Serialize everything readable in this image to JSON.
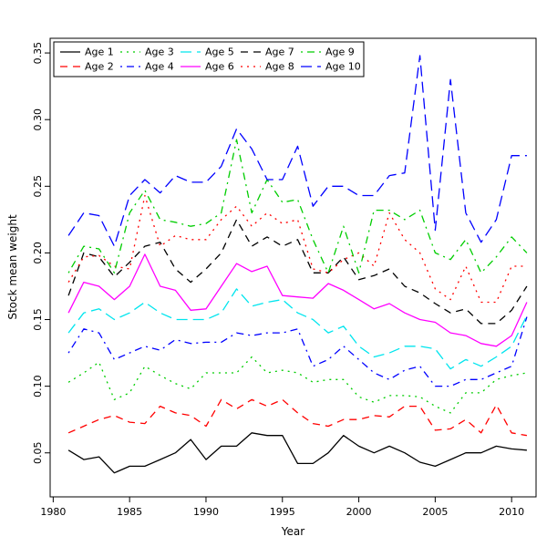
{
  "figure": {
    "background": "#ffffff",
    "xlabel": "Year",
    "ylabel": "Stock mean weight"
  },
  "chart_data": {
    "type": "line",
    "title": "",
    "xlabel": "Year",
    "ylabel": "Stock mean weight",
    "xlim": [
      1979.8,
      2011.6
    ],
    "ylim": [
      0.017,
      0.361
    ],
    "xticks": [
      1980,
      1985,
      1990,
      1995,
      2000,
      2005,
      2010
    ],
    "yticks": [
      0.05,
      0.1,
      0.15,
      0.2,
      0.25,
      0.3,
      0.35
    ],
    "ytick_labels": [
      "0.05",
      "0.10",
      "0.15",
      "0.20",
      "0.25",
      "0.30",
      "0.35"
    ],
    "grid": false,
    "legend": {
      "position": "top-left",
      "ncol": 5,
      "rows": 2,
      "order": "column-major"
    },
    "x": [
      1981,
      1982,
      1983,
      1984,
      1985,
      1986,
      1987,
      1988,
      1989,
      1990,
      1991,
      1992,
      1993,
      1994,
      1995,
      1996,
      1997,
      1998,
      1999,
      2000,
      2001,
      2002,
      2003,
      2004,
      2005,
      2006,
      2007,
      2008,
      2009,
      2010,
      2011
    ],
    "series": [
      {
        "name": "Age 1",
        "color": "#000000",
        "linestyle": "solid",
        "values": [
          0.052,
          0.045,
          0.047,
          0.035,
          0.04,
          0.04,
          0.045,
          0.05,
          0.06,
          0.045,
          0.055,
          0.055,
          0.065,
          0.063,
          0.063,
          0.042,
          0.042,
          0.05,
          0.063,
          0.055,
          0.05,
          0.055,
          0.05,
          0.043,
          0.04,
          0.045,
          0.05,
          0.05,
          0.055,
          0.053,
          0.052
        ]
      },
      {
        "name": "Age 2",
        "color": "#ff0000",
        "linestyle": "dashed",
        "values": [
          0.065,
          0.07,
          0.075,
          0.078,
          0.073,
          0.072,
          0.085,
          0.08,
          0.078,
          0.07,
          0.09,
          0.083,
          0.09,
          0.085,
          0.09,
          0.08,
          0.072,
          0.07,
          0.075,
          0.075,
          0.078,
          0.077,
          0.085,
          0.085,
          0.067,
          0.068,
          0.075,
          0.065,
          0.086,
          0.065,
          0.063
        ]
      },
      {
        "name": "Age 3",
        "color": "#00cd00",
        "linestyle": "dotted",
        "values": [
          0.103,
          0.11,
          0.118,
          0.09,
          0.095,
          0.115,
          0.108,
          0.102,
          0.098,
          0.11,
          0.11,
          0.11,
          0.122,
          0.11,
          0.112,
          0.11,
          0.103,
          0.105,
          0.105,
          0.092,
          0.088,
          0.093,
          0.093,
          0.092,
          0.085,
          0.08,
          0.095,
          0.095,
          0.105,
          0.108,
          0.11
        ]
      },
      {
        "name": "Age 4",
        "color": "#0000ff",
        "linestyle": "dotdash",
        "values": [
          0.125,
          0.143,
          0.14,
          0.12,
          0.125,
          0.13,
          0.127,
          0.135,
          0.132,
          0.133,
          0.133,
          0.14,
          0.138,
          0.14,
          0.14,
          0.143,
          0.115,
          0.12,
          0.13,
          0.12,
          0.11,
          0.105,
          0.112,
          0.115,
          0.1,
          0.1,
          0.105,
          0.105,
          0.11,
          0.115,
          0.152
        ]
      },
      {
        "name": "Age 5",
        "color": "#00e5ee",
        "linestyle": "longdash",
        "values": [
          0.14,
          0.155,
          0.158,
          0.15,
          0.155,
          0.163,
          0.155,
          0.15,
          0.15,
          0.15,
          0.155,
          0.173,
          0.16,
          0.163,
          0.165,
          0.155,
          0.15,
          0.14,
          0.145,
          0.13,
          0.122,
          0.125,
          0.13,
          0.13,
          0.128,
          0.113,
          0.12,
          0.115,
          0.122,
          0.13,
          0.153
        ]
      },
      {
        "name": "Age 6",
        "color": "#ff00ff",
        "linestyle": "solid",
        "values": [
          0.155,
          0.178,
          0.175,
          0.165,
          0.175,
          0.199,
          0.175,
          0.172,
          0.157,
          0.158,
          0.175,
          0.192,
          0.186,
          0.19,
          0.168,
          0.167,
          0.166,
          0.177,
          0.172,
          0.165,
          0.158,
          0.162,
          0.155,
          0.15,
          0.148,
          0.14,
          0.138,
          0.132,
          0.13,
          0.138,
          0.163
        ]
      },
      {
        "name": "Age 7",
        "color": "#000000",
        "linestyle": "dashed",
        "values": [
          0.168,
          0.2,
          0.197,
          0.182,
          0.193,
          0.205,
          0.208,
          0.188,
          0.178,
          0.188,
          0.2,
          0.225,
          0.205,
          0.212,
          0.205,
          0.21,
          0.185,
          0.185,
          0.197,
          0.18,
          0.183,
          0.188,
          0.175,
          0.17,
          0.162,
          0.155,
          0.158,
          0.147,
          0.147,
          0.157,
          0.175
        ]
      },
      {
        "name": "Age 8",
        "color": "#ff0000",
        "linestyle": "dotted",
        "values": [
          0.178,
          0.197,
          0.198,
          0.19,
          0.188,
          0.243,
          0.205,
          0.213,
          0.21,
          0.21,
          0.225,
          0.235,
          0.22,
          0.23,
          0.222,
          0.225,
          0.188,
          0.185,
          0.195,
          0.2,
          0.19,
          0.23,
          0.21,
          0.2,
          0.173,
          0.165,
          0.19,
          0.163,
          0.163,
          0.19,
          0.19
        ]
      },
      {
        "name": "Age 9",
        "color": "#00cd00",
        "linestyle": "dotdash",
        "values": [
          0.185,
          0.205,
          0.203,
          0.185,
          0.23,
          0.247,
          0.225,
          0.223,
          0.22,
          0.222,
          0.23,
          0.285,
          0.23,
          0.255,
          0.238,
          0.24,
          0.21,
          0.185,
          0.22,
          0.185,
          0.232,
          0.232,
          0.225,
          0.232,
          0.2,
          0.195,
          0.21,
          0.185,
          0.197,
          0.212,
          0.2
        ]
      },
      {
        "name": "Age 10",
        "color": "#0000ff",
        "linestyle": "longdash",
        "values": [
          0.213,
          0.23,
          0.228,
          0.205,
          0.243,
          0.255,
          0.245,
          0.258,
          0.253,
          0.253,
          0.265,
          0.293,
          0.278,
          0.255,
          0.255,
          0.28,
          0.235,
          0.25,
          0.25,
          0.243,
          0.243,
          0.258,
          0.26,
          0.348,
          0.217,
          0.33,
          0.23,
          0.208,
          0.225,
          0.273,
          0.273
        ]
      }
    ]
  }
}
